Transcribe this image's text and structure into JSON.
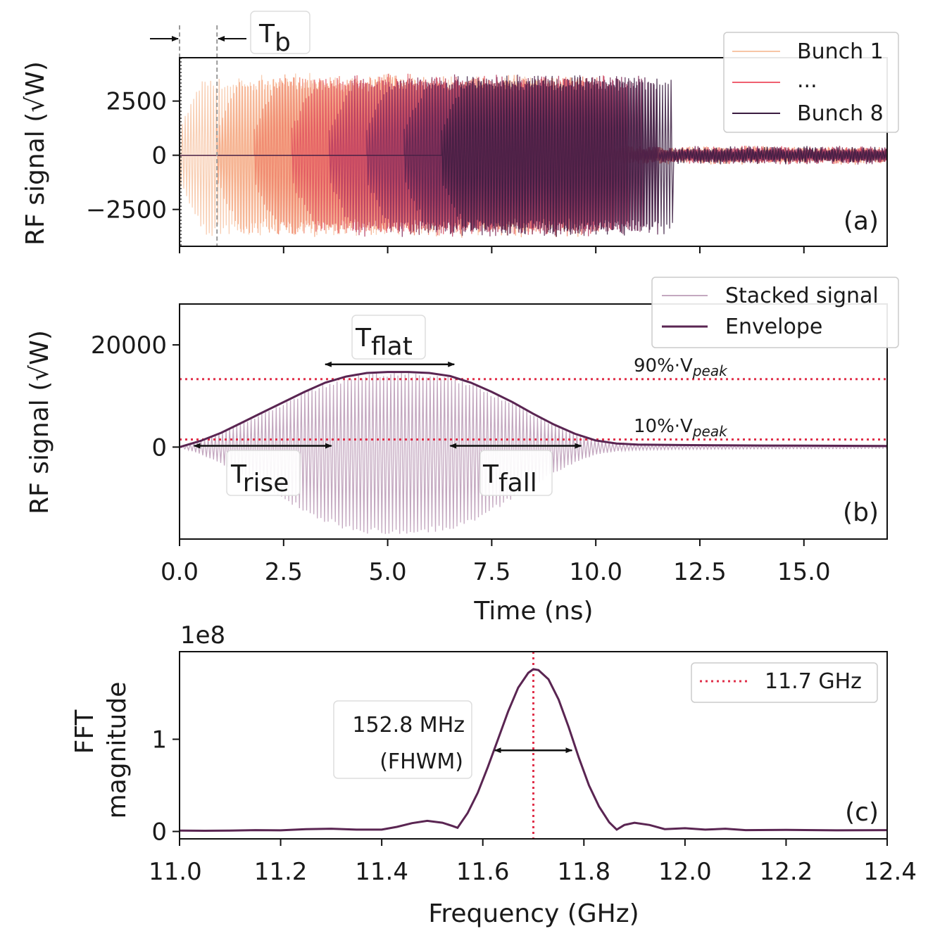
{
  "chart_data": [
    {
      "id": "a",
      "type": "line",
      "panel_label": "(a)",
      "ylabel": "RF signal (√W)",
      "xlim": [
        0,
        17
      ],
      "ylim": [
        -4200,
        4500
      ],
      "yticks": [
        -2500,
        0,
        2500
      ],
      "ytick_labels": [
        "−2500",
        "0",
        "2500"
      ],
      "series_legend": [
        "Bunch 1",
        "...",
        "Bunch 8"
      ],
      "series_colors": [
        "#f7c6a6",
        "#f4a47f",
        "#ef7f67",
        "#e05462",
        "#b53c61",
        "#852f5c",
        "#5a2550",
        "#3a1c40"
      ],
      "bunch_spacing_ns": 0.9,
      "bunch_duration_ns": 9.4,
      "peak_amplitude": 3800,
      "tail_amplitude": 300,
      "annotation": {
        "label": "T",
        "sub": "b",
        "t0": 0.0,
        "t1": 0.9
      }
    },
    {
      "id": "b",
      "type": "line",
      "panel_label": "(b)",
      "xlabel": "Time (ns)",
      "ylabel": "RF signal (√W)",
      "xlim": [
        0,
        17
      ],
      "ylim": [
        -18000,
        28000
      ],
      "xticks": [
        0.0,
        2.5,
        5.0,
        7.5,
        10.0,
        12.5,
        15.0
      ],
      "xtick_labels": [
        "0.0",
        "2.5",
        "5.0",
        "7.5",
        "10.0",
        "12.5",
        "15.0"
      ],
      "yticks": [
        0,
        20000
      ],
      "ytick_labels": [
        "0",
        "20000"
      ],
      "legend": [
        "Stacked signal",
        "Envelope"
      ],
      "peak": 14800,
      "level_90_label": "90%·V",
      "level_10_label": "10%·V",
      "level_sub": "peak",
      "level_90": 13300,
      "level_10": 1480,
      "envelope": [
        [
          0,
          0
        ],
        [
          0.5,
          1200
        ],
        [
          1.0,
          2800
        ],
        [
          1.5,
          4800
        ],
        [
          2.0,
          6800
        ],
        [
          2.5,
          8800
        ],
        [
          3.0,
          10800
        ],
        [
          3.5,
          12600
        ],
        [
          4.0,
          13800
        ],
        [
          4.5,
          14500
        ],
        [
          5.0,
          14700
        ],
        [
          5.5,
          14700
        ],
        [
          6.0,
          14500
        ],
        [
          6.5,
          13900
        ],
        [
          7.0,
          12600
        ],
        [
          7.5,
          10800
        ],
        [
          8.0,
          8800
        ],
        [
          8.5,
          6500
        ],
        [
          9.0,
          4400
        ],
        [
          9.5,
          2600
        ],
        [
          10.0,
          1300
        ],
        [
          10.5,
          700
        ],
        [
          11.0,
          500
        ],
        [
          12.0,
          400
        ],
        [
          13.0,
          350
        ],
        [
          14.0,
          300
        ],
        [
          15.0,
          280
        ],
        [
          16.0,
          250
        ],
        [
          17.0,
          220
        ]
      ],
      "annotations": [
        {
          "label": "T",
          "sub": "rise",
          "t0": 0.35,
          "t1": 3.65
        },
        {
          "label": "T",
          "sub": "flat",
          "t0": 3.5,
          "t1": 6.6
        },
        {
          "label": "T",
          "sub": "fall",
          "t0": 6.5,
          "t1": 9.65
        }
      ]
    },
    {
      "id": "c",
      "type": "line",
      "panel_label": "(c)",
      "xlabel": "Frequency (GHz)",
      "ylabel_line1": "FFT",
      "ylabel_line2": "magnitude",
      "offset_label": "1e8",
      "xlim": [
        11.0,
        12.4
      ],
      "ylim": [
        -0.08,
        1.95
      ],
      "xticks": [
        11.0,
        11.2,
        11.4,
        11.6,
        11.8,
        12.0,
        12.2,
        12.4
      ],
      "xtick_labels": [
        "11.0",
        "11.2",
        "11.4",
        "11.6",
        "11.8",
        "12.0",
        "12.2",
        "12.4"
      ],
      "yticks": [
        0,
        1
      ],
      "ytick_labels": [
        "0",
        "1"
      ],
      "legend": [
        "11.7 GHz"
      ],
      "marker_freq": 11.7,
      "fwhm_line1": "152.8 MHz",
      "fwhm_line2": "(FHWM)",
      "fwhm_range": [
        11.6236,
        11.7764
      ],
      "fwhm_level": 0.88,
      "spectrum": [
        [
          11.0,
          0.01
        ],
        [
          11.05,
          0.008
        ],
        [
          11.1,
          0.01
        ],
        [
          11.15,
          0.015
        ],
        [
          11.2,
          0.012
        ],
        [
          11.25,
          0.025
        ],
        [
          11.3,
          0.03
        ],
        [
          11.35,
          0.02
        ],
        [
          11.4,
          0.02
        ],
        [
          11.43,
          0.05
        ],
        [
          11.46,
          0.09
        ],
        [
          11.49,
          0.115
        ],
        [
          11.52,
          0.095
        ],
        [
          11.54,
          0.06
        ],
        [
          11.55,
          0.04
        ],
        [
          11.57,
          0.2
        ],
        [
          11.59,
          0.42
        ],
        [
          11.61,
          0.7
        ],
        [
          11.63,
          1.0
        ],
        [
          11.65,
          1.3
        ],
        [
          11.67,
          1.56
        ],
        [
          11.69,
          1.72
        ],
        [
          11.7,
          1.76
        ],
        [
          11.71,
          1.75
        ],
        [
          11.73,
          1.65
        ],
        [
          11.75,
          1.43
        ],
        [
          11.77,
          1.13
        ],
        [
          11.79,
          0.8
        ],
        [
          11.81,
          0.5
        ],
        [
          11.83,
          0.27
        ],
        [
          11.85,
          0.1
        ],
        [
          11.865,
          0.02
        ],
        [
          11.88,
          0.07
        ],
        [
          11.9,
          0.095
        ],
        [
          11.93,
          0.07
        ],
        [
          11.96,
          0.025
        ],
        [
          12.0,
          0.035
        ],
        [
          12.04,
          0.02
        ],
        [
          12.08,
          0.03
        ],
        [
          12.12,
          0.015
        ],
        [
          12.2,
          0.018
        ],
        [
          12.3,
          0.012
        ],
        [
          12.4,
          0.015
        ]
      ]
    }
  ],
  "colors": {
    "envelope": "#5a2552",
    "stacked": "#c4a8c0",
    "dotted_red": "#e0304a",
    "axis": "#111111"
  }
}
